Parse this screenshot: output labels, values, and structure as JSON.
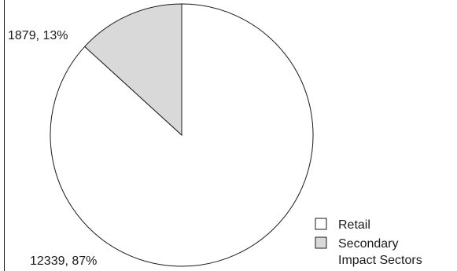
{
  "chart_data": {
    "type": "pie",
    "title": "",
    "slices": [
      {
        "label": "Retail",
        "value": 12339,
        "percent": "87%",
        "display": "12339, 87%",
        "color": "#ffffff"
      },
      {
        "label": "Secondary Impact Sectors",
        "value": 1879,
        "percent": "13%",
        "display": "1879, 13%",
        "color": "#d9d9d9"
      }
    ],
    "legend": {
      "placement": "bottom-right",
      "items": [
        {
          "lines": [
            "Retail"
          ],
          "color": "#ffffff"
        },
        {
          "lines": [
            "Secondary",
            "Impact Sectors"
          ],
          "color": "#d9d9d9"
        }
      ]
    },
    "outline_color": "#1a1a1a",
    "start_angle": "12 o'clock",
    "direction": "clockwise"
  }
}
